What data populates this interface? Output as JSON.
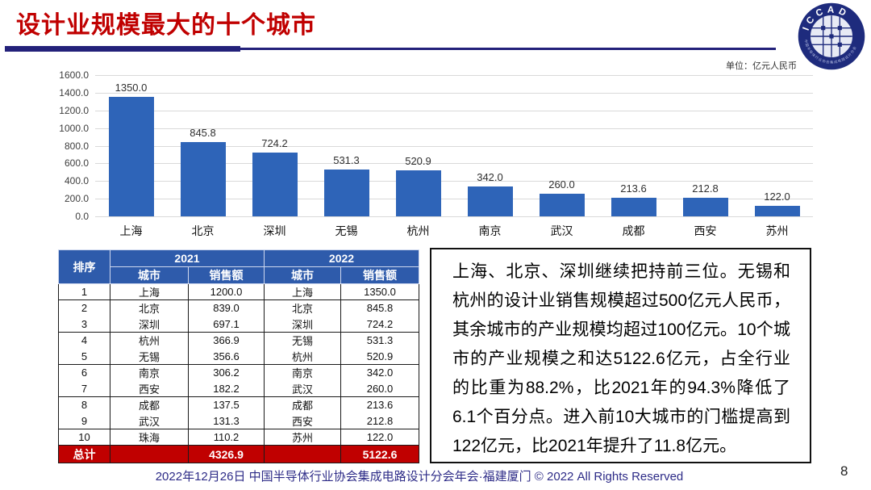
{
  "header": {
    "title": "设计业规模最大的十个城市",
    "unit_label": "单位：亿元人民币",
    "logo_text": "ICCAD",
    "logo_ring_text": "中国半导体行业协会集成电路设计分会"
  },
  "chart_data": {
    "type": "bar",
    "title": "",
    "xlabel": "",
    "ylabel": "",
    "categories": [
      "上海",
      "北京",
      "深圳",
      "无锡",
      "杭州",
      "南京",
      "武汉",
      "成都",
      "西安",
      "苏州"
    ],
    "values": [
      1350.0,
      845.8,
      724.2,
      531.3,
      520.9,
      342.0,
      260.0,
      213.6,
      212.8,
      122.0
    ],
    "value_labels": [
      "1350.0",
      "845.8",
      "724.2",
      "531.3",
      "520.9",
      "342.0",
      "260.0",
      "213.6",
      "212.8",
      "122.0"
    ],
    "ylim": [
      0,
      1600
    ],
    "yticks": [
      "1600.0",
      "1400.0",
      "1200.0",
      "1000.0",
      "800.0",
      "600.0",
      "400.0",
      "200.0",
      "0.0"
    ],
    "grid": true,
    "legend": "none"
  },
  "table": {
    "rank_header": "排序",
    "year_headers": [
      "2021",
      "2022"
    ],
    "sub_headers": [
      "城市",
      "销售额"
    ],
    "rows": [
      {
        "rank": "1",
        "city_2021": "上海",
        "sales_2021": "1200.0",
        "city_2022": "上海",
        "sales_2022": "1350.0"
      },
      {
        "rank": "2",
        "city_2021": "北京",
        "sales_2021": "839.0",
        "city_2022": "北京",
        "sales_2022": "845.8"
      },
      {
        "rank": "3",
        "city_2021": "深圳",
        "sales_2021": "697.1",
        "city_2022": "深圳",
        "sales_2022": "724.2"
      },
      {
        "rank": "4",
        "city_2021": "杭州",
        "sales_2021": "366.9",
        "city_2022": "无锡",
        "sales_2022": "531.3"
      },
      {
        "rank": "5",
        "city_2021": "无锡",
        "sales_2021": "356.6",
        "city_2022": "杭州",
        "sales_2022": "520.9"
      },
      {
        "rank": "6",
        "city_2021": "南京",
        "sales_2021": "306.2",
        "city_2022": "南京",
        "sales_2022": "342.0"
      },
      {
        "rank": "7",
        "city_2021": "西安",
        "sales_2021": "182.2",
        "city_2022": "武汉",
        "sales_2022": "260.0"
      },
      {
        "rank": "8",
        "city_2021": "成都",
        "sales_2021": "137.5",
        "city_2022": "成都",
        "sales_2022": "213.6"
      },
      {
        "rank": "9",
        "city_2021": "武汉",
        "sales_2021": "131.3",
        "city_2022": "西安",
        "sales_2022": "212.8"
      },
      {
        "rank": "10",
        "city_2021": "珠海",
        "sales_2021": "110.2",
        "city_2022": "苏州",
        "sales_2022": "122.0"
      }
    ],
    "total": {
      "label": "总计",
      "sales_2021": "4326.9",
      "sales_2022": "5122.6"
    }
  },
  "commentary": {
    "text": "上海、北京、深圳继续把持前三位。无锡和杭州的设计业销售规模超过500亿元人民币，其余城市的产业规模均超过100亿元。10个城市的产业规模之和达5122.6亿元，占全行业的比重为88.2%，比2021年的94.3%降低了6.1个百分点。进入前10大城市的门槛提高到122亿元，比2021年提升了11.8亿元。"
  },
  "footer": {
    "text": "2022年12月26日 中国半导体行业协会集成电路设计分会年会·福建厦门 © 2022 All Rights Reserved",
    "page_number": "8"
  },
  "colors": {
    "bar_blue": "#2e64b8",
    "table_header_blue": "#2e5bab",
    "accent_red": "#c00000",
    "navy_rule": "#23217a",
    "footer_navy": "#2d2b87",
    "gridline_gray": "#d9d9d9"
  }
}
